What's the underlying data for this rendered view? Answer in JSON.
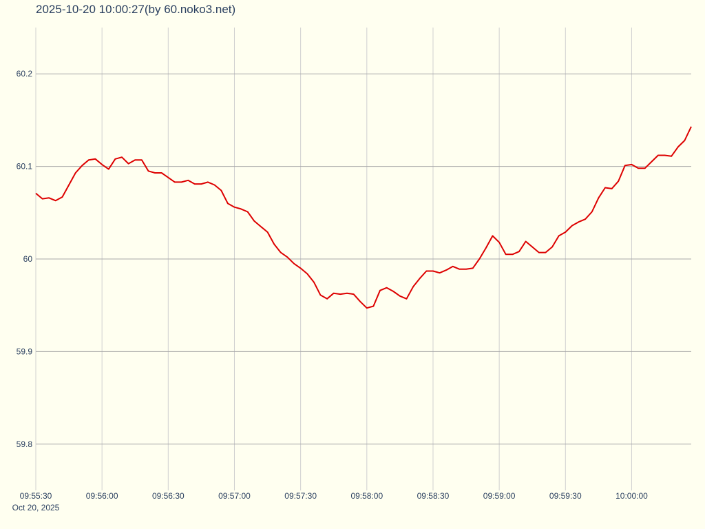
{
  "title": "2025-10-20 10:00:27(by 60.noko3.net)",
  "chart_data": {
    "type": "line",
    "title": "2025-10-20 10:00:27(by 60.noko3.net)",
    "xlabel": "",
    "ylabel": "",
    "x_range": [
      "09:55:30",
      "10:00:27"
    ],
    "ylim": [
      59.75,
      60.25
    ],
    "grid": true,
    "line_color": "#dd0000",
    "background": "#fffff0",
    "y_ticks": [
      59.8,
      59.9,
      60,
      60.1,
      60.2
    ],
    "y_tick_labels": [
      "59.8",
      "59.9",
      "60",
      "60.1",
      "60.2"
    ],
    "x_ticks": [
      "09:55:30",
      "09:56:00",
      "09:56:30",
      "09:57:00",
      "09:57:30",
      "09:58:00",
      "09:58:30",
      "09:59:00",
      "09:59:30",
      "10:00:00"
    ],
    "x_date_label": "Oct 20, 2025",
    "points": [
      [
        "09:55:30",
        60.071
      ],
      [
        "09:55:33",
        60.065
      ],
      [
        "09:55:36",
        60.066
      ],
      [
        "09:55:39",
        60.063
      ],
      [
        "09:55:42",
        60.067
      ],
      [
        "09:55:45",
        60.08
      ],
      [
        "09:55:48",
        60.093
      ],
      [
        "09:55:51",
        60.101
      ],
      [
        "09:55:54",
        60.107
      ],
      [
        "09:55:57",
        60.108
      ],
      [
        "09:56:00",
        60.102
      ],
      [
        "09:56:03",
        60.097
      ],
      [
        "09:56:06",
        60.108
      ],
      [
        "09:56:09",
        60.11
      ],
      [
        "09:56:12",
        60.103
      ],
      [
        "09:56:15",
        60.107
      ],
      [
        "09:56:18",
        60.107
      ],
      [
        "09:56:21",
        60.095
      ],
      [
        "09:56:24",
        60.093
      ],
      [
        "09:56:27",
        60.093
      ],
      [
        "09:56:30",
        60.088
      ],
      [
        "09:56:33",
        60.083
      ],
      [
        "09:56:36",
        60.083
      ],
      [
        "09:56:39",
        60.085
      ],
      [
        "09:56:42",
        60.081
      ],
      [
        "09:56:45",
        60.081
      ],
      [
        "09:56:48",
        60.083
      ],
      [
        "09:56:51",
        60.08
      ],
      [
        "09:56:54",
        60.074
      ],
      [
        "09:56:57",
        60.06
      ],
      [
        "09:57:00",
        60.056
      ],
      [
        "09:57:03",
        60.054
      ],
      [
        "09:57:06",
        60.051
      ],
      [
        "09:57:09",
        60.041
      ],
      [
        "09:57:12",
        60.035
      ],
      [
        "09:57:15",
        60.029
      ],
      [
        "09:57:18",
        60.016
      ],
      [
        "09:57:21",
        60.007
      ],
      [
        "09:57:24",
        60.002
      ],
      [
        "09:57:27",
        59.995
      ],
      [
        "09:57:30",
        59.99
      ],
      [
        "09:57:33",
        59.984
      ],
      [
        "09:57:36",
        59.975
      ],
      [
        "09:57:39",
        59.961
      ],
      [
        "09:57:42",
        59.957
      ],
      [
        "09:57:45",
        59.963
      ],
      [
        "09:57:48",
        59.962
      ],
      [
        "09:57:51",
        59.963
      ],
      [
        "09:57:54",
        59.962
      ],
      [
        "09:57:57",
        59.954
      ],
      [
        "09:58:00",
        59.947
      ],
      [
        "09:58:03",
        59.949
      ],
      [
        "09:58:06",
        59.966
      ],
      [
        "09:58:09",
        59.969
      ],
      [
        "09:58:12",
        59.965
      ],
      [
        "09:58:15",
        59.96
      ],
      [
        "09:58:18",
        59.957
      ],
      [
        "09:58:21",
        59.97
      ],
      [
        "09:58:24",
        59.979
      ],
      [
        "09:58:27",
        59.987
      ],
      [
        "09:58:30",
        59.987
      ],
      [
        "09:58:33",
        59.985
      ],
      [
        "09:58:36",
        59.988
      ],
      [
        "09:58:39",
        59.992
      ],
      [
        "09:58:42",
        59.989
      ],
      [
        "09:58:45",
        59.989
      ],
      [
        "09:58:48",
        59.99
      ],
      [
        "09:58:51",
        60.0
      ],
      [
        "09:58:54",
        60.012
      ],
      [
        "09:58:57",
        60.025
      ],
      [
        "09:59:00",
        60.018
      ],
      [
        "09:59:03",
        60.005
      ],
      [
        "09:59:06",
        60.005
      ],
      [
        "09:59:09",
        60.008
      ],
      [
        "09:59:12",
        60.019
      ],
      [
        "09:59:15",
        60.013
      ],
      [
        "09:59:18",
        60.007
      ],
      [
        "09:59:21",
        60.007
      ],
      [
        "09:59:24",
        60.013
      ],
      [
        "09:59:27",
        60.025
      ],
      [
        "09:59:30",
        60.029
      ],
      [
        "09:59:33",
        60.036
      ],
      [
        "09:59:36",
        60.04
      ],
      [
        "09:59:39",
        60.043
      ],
      [
        "09:59:42",
        60.051
      ],
      [
        "09:59:45",
        60.066
      ],
      [
        "09:59:48",
        60.077
      ],
      [
        "09:59:51",
        60.076
      ],
      [
        "09:59:54",
        60.084
      ],
      [
        "09:59:57",
        60.101
      ],
      [
        "10:00:00",
        60.102
      ],
      [
        "10:00:03",
        60.098
      ],
      [
        "10:00:06",
        60.098
      ],
      [
        "10:00:09",
        60.105
      ],
      [
        "10:00:12",
        60.112
      ],
      [
        "10:00:15",
        60.112
      ],
      [
        "10:00:18",
        60.111
      ],
      [
        "10:00:21",
        60.121
      ],
      [
        "10:00:24",
        60.128
      ],
      [
        "10:00:27",
        60.143
      ]
    ]
  }
}
